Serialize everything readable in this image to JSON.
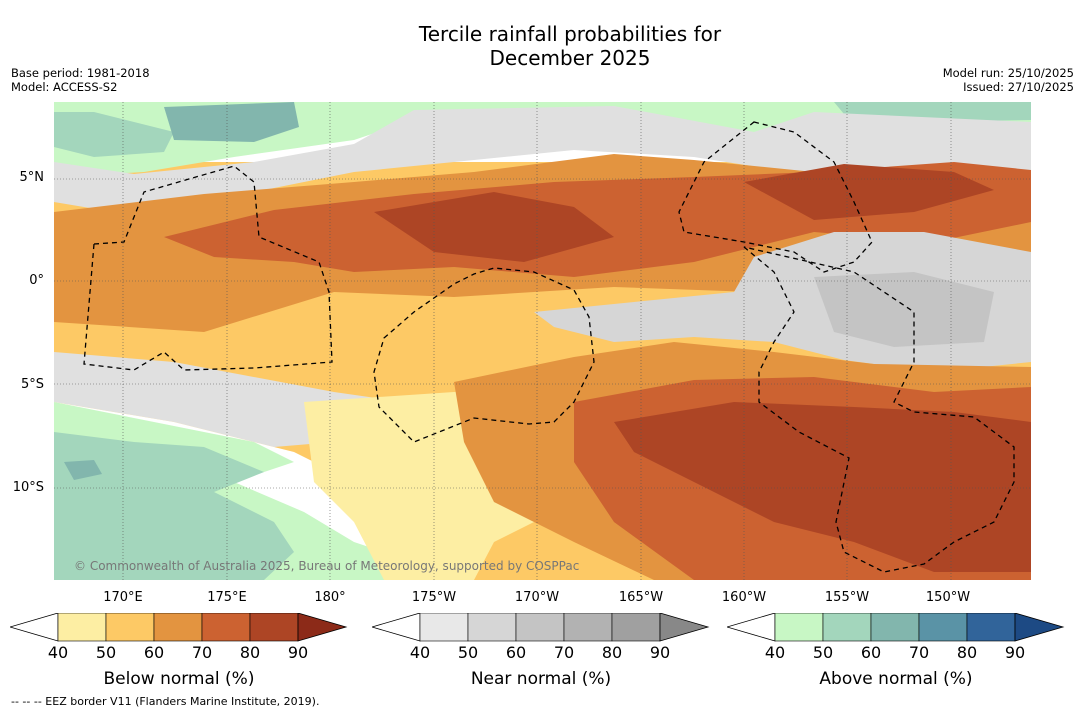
{
  "title_line1": "Tercile rainfall probabilities for",
  "title_line2": "December 2025",
  "meta_left": {
    "base_period": "Base period: 1981-2018",
    "model": "Model: ACCESS-S2"
  },
  "meta_right": {
    "model_run": "Model run: 25/10/2025",
    "issued": "Issued: 27/10/2025"
  },
  "lat_labels": [
    "5°N",
    "0°",
    "5°S",
    "10°S"
  ],
  "lon_labels": [
    "170°E",
    "175°E",
    "180°",
    "175°W",
    "170°W",
    "165°W",
    "160°W",
    "155°W",
    "150°W"
  ],
  "copyright": "© Commonwealth of Australia 2025, Bureau of Meteorology, supported by COSPPac",
  "colorbars": [
    {
      "title": "Below normal (%)",
      "ticks": [
        "40",
        "50",
        "60",
        "70",
        "80",
        "90"
      ],
      "colors": [
        "#ffffff",
        "#fdeea3",
        "#fdc965",
        "#e39440",
        "#cc6231",
        "#ad4525",
        "#8c2a18"
      ]
    },
    {
      "title": "Near normal (%)",
      "ticks": [
        "40",
        "50",
        "60",
        "70",
        "80",
        "90"
      ],
      "colors": [
        "#ffffff",
        "#e8e8e8",
        "#d6d6d6",
        "#c4c4c4",
        "#b2b2b2",
        "#a0a0a0",
        "#888888"
      ]
    },
    {
      "title": "Above normal (%)",
      "ticks": [
        "40",
        "50",
        "60",
        "70",
        "80",
        "90"
      ],
      "colors": [
        "#ffffff",
        "#c8f7c5",
        "#a3d6bc",
        "#82b6ad",
        "#5a93a6",
        "#31649a",
        "#1d4a84"
      ]
    }
  ],
  "footer": "--  --  -- EEZ border V11 (Flanders Marine Institute, 2019)."
}
